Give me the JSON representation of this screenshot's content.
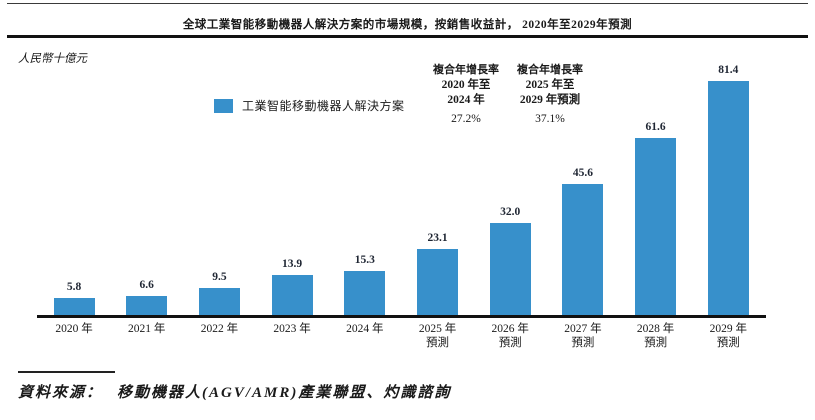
{
  "header": {
    "title": "全球工業智能移動機器人解決方案的市場規模，按銷售收益計， 2020年至2029年預測"
  },
  "axis": {
    "unit_label": "人民幣十億元"
  },
  "legend": {
    "label": "工業智能移動機器人解決方案",
    "swatch_color": "#3790cb"
  },
  "cagr": [
    {
      "heading": "複合年增長率",
      "period_line1": "2020 年至",
      "period_line2": "2024 年",
      "value": "27.2%"
    },
    {
      "heading": "複合年增長率",
      "period_line1": "2025 年至",
      "period_line2": "2029 年預測",
      "value": "37.1%"
    }
  ],
  "source": {
    "label": "資料來源：",
    "text": "移動機器人(AGV/AMR)產業聯盟、灼識諮詢"
  },
  "chart_data": {
    "type": "bar",
    "title": "全球工業智能移動機器人解決方案的市場規模，按銷售收益計，2020年至2029年預測",
    "xlabel": "",
    "ylabel": "人民幣十億元",
    "ylim": [
      0,
      90
    ],
    "grid": false,
    "legend_position": "top-left",
    "bar_color": "#3790cb",
    "categories": [
      "2020 年",
      "2021 年",
      "2022 年",
      "2023 年",
      "2024 年",
      "2025 年 預測",
      "2026 年 預測",
      "2027 年 預測",
      "2028 年 預測",
      "2029 年 預測"
    ],
    "values": [
      5.8,
      6.6,
      9.5,
      13.9,
      15.3,
      23.1,
      32.0,
      45.6,
      61.6,
      81.4
    ],
    "bars": [
      {
        "category": "2020 年",
        "sublabel": "",
        "value": 5.8,
        "label": "5.8"
      },
      {
        "category": "2021 年",
        "sublabel": "",
        "value": 6.6,
        "label": "6.6"
      },
      {
        "category": "2022 年",
        "sublabel": "",
        "value": 9.5,
        "label": "9.5"
      },
      {
        "category": "2023 年",
        "sublabel": "",
        "value": 13.9,
        "label": "13.9"
      },
      {
        "category": "2024 年",
        "sublabel": "",
        "value": 15.3,
        "label": "15.3"
      },
      {
        "category": "2025 年",
        "sublabel": "預測",
        "value": 23.1,
        "label": "23.1"
      },
      {
        "category": "2026 年",
        "sublabel": "預測",
        "value": 32.0,
        "label": "32.0"
      },
      {
        "category": "2027 年",
        "sublabel": "預測",
        "value": 45.6,
        "label": "45.6"
      },
      {
        "category": "2028 年",
        "sublabel": "預測",
        "value": 61.6,
        "label": "61.6"
      },
      {
        "category": "2029 年",
        "sublabel": "預測",
        "value": 81.4,
        "label": "81.4"
      }
    ]
  }
}
